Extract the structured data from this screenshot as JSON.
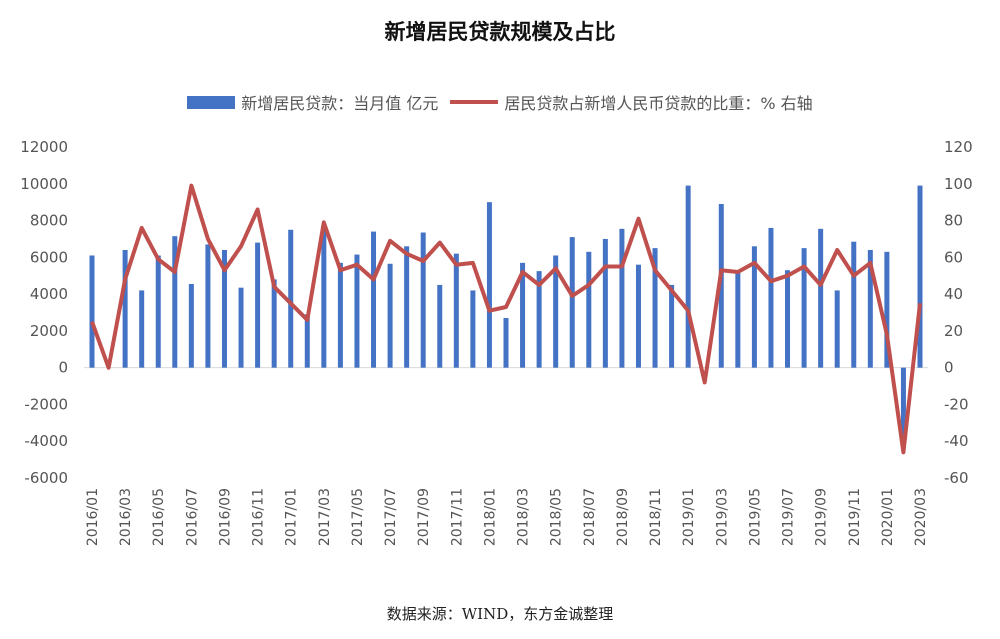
{
  "chart_data": {
    "type": "bar",
    "title": "新增居民贷款规模及占比",
    "source": "数据来源：WIND，东方金诚整理",
    "categories": [
      "2016/01",
      "2016/02",
      "2016/03",
      "2016/04",
      "2016/05",
      "2016/06",
      "2016/07",
      "2016/08",
      "2016/09",
      "2016/10",
      "2016/11",
      "2016/12",
      "2017/01",
      "2017/02",
      "2017/03",
      "2017/04",
      "2017/05",
      "2017/06",
      "2017/07",
      "2017/08",
      "2017/09",
      "2017/10",
      "2017/11",
      "2017/12",
      "2018/01",
      "2018/02",
      "2018/03",
      "2018/04",
      "2018/05",
      "2018/06",
      "2018/07",
      "2018/08",
      "2018/09",
      "2018/10",
      "2018/11",
      "2018/12",
      "2019/01",
      "2019/02",
      "2019/03",
      "2019/04",
      "2019/05",
      "2019/06",
      "2019/07",
      "2019/08",
      "2019/09",
      "2019/10",
      "2019/11",
      "2019/12",
      "2020/01",
      "2020/02",
      "2020/03"
    ],
    "x_tick_labels": [
      "2016/01",
      "2016/03",
      "2016/05",
      "2016/07",
      "2016/09",
      "2016/11",
      "2017/01",
      "2017/03",
      "2017/05",
      "2017/07",
      "2017/09",
      "2017/11",
      "2018/01",
      "2018/03",
      "2018/05",
      "2018/07",
      "2018/09",
      "2018/11",
      "2019/01",
      "2019/03",
      "2019/05",
      "2019/07",
      "2019/09",
      "2019/11",
      "2020/01",
      "2020/03"
    ],
    "series": [
      {
        "name": "新增居民贷款：当月值 亿元",
        "type": "bar",
        "axis": "left",
        "color": "#4472C4",
        "values": [
          6100,
          0,
          6400,
          4200,
          6100,
          7150,
          4550,
          6700,
          6400,
          4350,
          6800,
          4800,
          7500,
          2900,
          7550,
          5700,
          6150,
          7400,
          5650,
          6600,
          7350,
          4500,
          6200,
          4200,
          9000,
          2700,
          5700,
          5250,
          6100,
          7100,
          6300,
          7000,
          7550,
          5600,
          6500,
          4500,
          9900,
          0,
          8900,
          5200,
          6600,
          7600,
          5300,
          6500,
          7550,
          4200,
          6850,
          6400,
          6300,
          -3700,
          9900
        ]
      },
      {
        "name": "居民贷款占新增人民币贷款的比重：% 右轴",
        "type": "line",
        "axis": "right",
        "color": "#C0504D",
        "values": [
          25,
          0,
          48,
          76,
          59,
          52,
          99,
          70,
          53,
          66,
          86,
          44,
          35,
          26,
          79,
          53,
          56,
          48,
          69,
          62,
          58,
          68,
          56,
          57,
          31,
          33,
          52,
          45,
          54,
          39,
          45,
          55,
          55,
          81,
          53,
          42,
          31,
          -8,
          53,
          52,
          57,
          47,
          50,
          55,
          45,
          64,
          50,
          57,
          18,
          -46,
          35
        ]
      }
    ],
    "y_left": {
      "min": -6000,
      "max": 12000,
      "step": 2000,
      "tick_labels": [
        "-6000",
        "-4000",
        "-2000",
        "0",
        "2000",
        "4000",
        "6000",
        "8000",
        "10000",
        "12000"
      ]
    },
    "y_right": {
      "min": -60,
      "max": 120,
      "step": 20,
      "tick_labels": [
        "-60",
        "-40",
        "-20",
        "0",
        "20",
        "40",
        "60",
        "80",
        "100",
        "120"
      ]
    },
    "legend_position": "top-center",
    "grid": false
  }
}
